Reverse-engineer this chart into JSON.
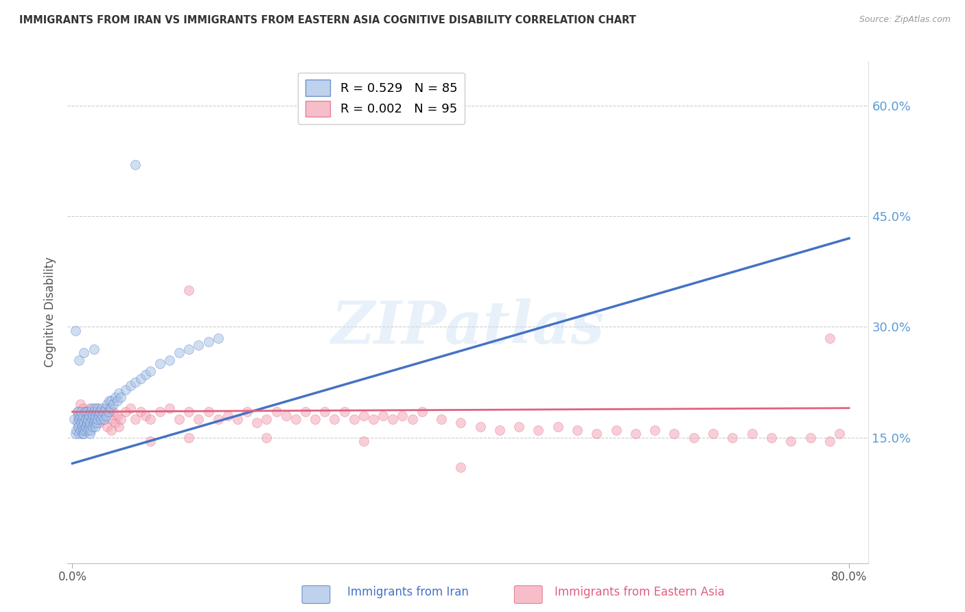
{
  "title": "IMMIGRANTS FROM IRAN VS IMMIGRANTS FROM EASTERN ASIA COGNITIVE DISABILITY CORRELATION CHART",
  "source": "Source: ZipAtlas.com",
  "ylabel": "Cognitive Disability",
  "x_tick_labels": [
    "0.0%",
    "",
    "",
    "",
    "80.0%"
  ],
  "x_tick_values": [
    0.0,
    0.2,
    0.4,
    0.6,
    0.8
  ],
  "y_tick_labels_right": [
    "60.0%",
    "45.0%",
    "30.0%",
    "15.0%"
  ],
  "y_tick_values": [
    0.6,
    0.45,
    0.3,
    0.15
  ],
  "xlim": [
    -0.005,
    0.82
  ],
  "ylim": [
    -0.02,
    0.66
  ],
  "legend_series1_label": "Immigrants from Iran",
  "legend_series2_label": "Immigrants from Eastern Asia",
  "legend_r1": "R = 0.529",
  "legend_n1": "N = 85",
  "legend_r2": "R = 0.002",
  "legend_n2": "N = 95",
  "color_iran": "#aac4e8",
  "color_eastern_asia": "#f4a8b8",
  "color_line_iran": "#4472c4",
  "color_line_eastern_asia": "#e06080",
  "color_axis_right": "#5b9bd5",
  "watermark": "ZIPatlas",
  "iran_x": [
    0.002,
    0.003,
    0.004,
    0.005,
    0.005,
    0.006,
    0.006,
    0.007,
    0.007,
    0.008,
    0.008,
    0.009,
    0.009,
    0.01,
    0.01,
    0.01,
    0.011,
    0.011,
    0.012,
    0.012,
    0.013,
    0.013,
    0.014,
    0.014,
    0.015,
    0.015,
    0.016,
    0.016,
    0.017,
    0.017,
    0.018,
    0.018,
    0.019,
    0.019,
    0.02,
    0.02,
    0.021,
    0.021,
    0.022,
    0.022,
    0.023,
    0.023,
    0.024,
    0.024,
    0.025,
    0.025,
    0.026,
    0.026,
    0.027,
    0.028,
    0.029,
    0.03,
    0.031,
    0.032,
    0.033,
    0.034,
    0.035,
    0.036,
    0.037,
    0.038,
    0.039,
    0.04,
    0.042,
    0.044,
    0.046,
    0.048,
    0.05,
    0.055,
    0.06,
    0.065,
    0.07,
    0.075,
    0.08,
    0.09,
    0.1,
    0.11,
    0.12,
    0.13,
    0.14,
    0.15,
    0.003,
    0.007,
    0.012,
    0.022,
    0.065
  ],
  "iran_y": [
    0.175,
    0.155,
    0.16,
    0.17,
    0.185,
    0.165,
    0.18,
    0.155,
    0.175,
    0.16,
    0.18,
    0.17,
    0.185,
    0.155,
    0.165,
    0.175,
    0.16,
    0.18,
    0.155,
    0.17,
    0.185,
    0.16,
    0.175,
    0.165,
    0.17,
    0.185,
    0.16,
    0.175,
    0.165,
    0.18,
    0.155,
    0.17,
    0.185,
    0.16,
    0.175,
    0.19,
    0.165,
    0.18,
    0.17,
    0.185,
    0.175,
    0.19,
    0.165,
    0.18,
    0.17,
    0.185,
    0.175,
    0.19,
    0.18,
    0.185,
    0.175,
    0.19,
    0.18,
    0.185,
    0.175,
    0.19,
    0.18,
    0.195,
    0.185,
    0.2,
    0.19,
    0.2,
    0.195,
    0.205,
    0.2,
    0.21,
    0.205,
    0.215,
    0.22,
    0.225,
    0.23,
    0.235,
    0.24,
    0.25,
    0.255,
    0.265,
    0.27,
    0.275,
    0.28,
    0.285,
    0.295,
    0.255,
    0.265,
    0.27,
    0.52
  ],
  "east_asia_x": [
    0.005,
    0.006,
    0.007,
    0.008,
    0.009,
    0.01,
    0.011,
    0.012,
    0.013,
    0.014,
    0.015,
    0.016,
    0.017,
    0.018,
    0.019,
    0.02,
    0.022,
    0.024,
    0.026,
    0.028,
    0.03,
    0.032,
    0.034,
    0.036,
    0.038,
    0.04,
    0.042,
    0.044,
    0.046,
    0.048,
    0.05,
    0.055,
    0.06,
    0.065,
    0.07,
    0.075,
    0.08,
    0.09,
    0.1,
    0.11,
    0.12,
    0.13,
    0.14,
    0.15,
    0.16,
    0.17,
    0.18,
    0.19,
    0.2,
    0.21,
    0.22,
    0.23,
    0.24,
    0.25,
    0.26,
    0.27,
    0.28,
    0.29,
    0.3,
    0.31,
    0.32,
    0.33,
    0.34,
    0.35,
    0.36,
    0.38,
    0.4,
    0.42,
    0.44,
    0.46,
    0.48,
    0.5,
    0.52,
    0.54,
    0.56,
    0.58,
    0.6,
    0.62,
    0.64,
    0.66,
    0.68,
    0.7,
    0.72,
    0.74,
    0.76,
    0.78,
    0.79,
    0.04,
    0.08,
    0.12,
    0.2,
    0.3,
    0.4,
    0.12,
    0.78
  ],
  "east_asia_y": [
    0.185,
    0.175,
    0.165,
    0.195,
    0.18,
    0.17,
    0.19,
    0.175,
    0.185,
    0.17,
    0.18,
    0.165,
    0.175,
    0.19,
    0.17,
    0.185,
    0.18,
    0.175,
    0.19,
    0.17,
    0.185,
    0.175,
    0.18,
    0.165,
    0.19,
    0.175,
    0.185,
    0.17,
    0.18,
    0.165,
    0.175,
    0.185,
    0.19,
    0.175,
    0.185,
    0.18,
    0.175,
    0.185,
    0.19,
    0.175,
    0.185,
    0.175,
    0.185,
    0.175,
    0.18,
    0.175,
    0.185,
    0.17,
    0.175,
    0.185,
    0.18,
    0.175,
    0.185,
    0.175,
    0.185,
    0.175,
    0.185,
    0.175,
    0.18,
    0.175,
    0.18,
    0.175,
    0.18,
    0.175,
    0.185,
    0.175,
    0.17,
    0.165,
    0.16,
    0.165,
    0.16,
    0.165,
    0.16,
    0.155,
    0.16,
    0.155,
    0.16,
    0.155,
    0.15,
    0.155,
    0.15,
    0.155,
    0.15,
    0.145,
    0.15,
    0.145,
    0.155,
    0.16,
    0.145,
    0.15,
    0.15,
    0.145,
    0.11,
    0.35,
    0.285
  ],
  "iran_line_x0": 0.0,
  "iran_line_x1": 0.8,
  "iran_line_y0": 0.115,
  "iran_line_y1": 0.42,
  "east_line_x0": 0.0,
  "east_line_x1": 0.8,
  "east_line_y0": 0.185,
  "east_line_y1": 0.19
}
